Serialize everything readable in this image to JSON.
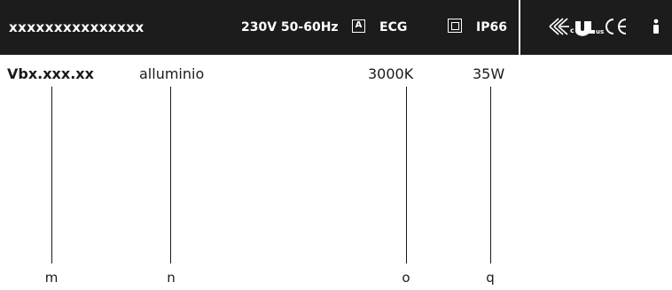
{
  "header": {
    "product_code": "xxxxxxxxxxxxxxx",
    "voltage": "230V 50-60Hz",
    "energy_class_letter": "A",
    "driver": "ECG",
    "ip_rating": "IP66",
    "certification_icons": [
      "enec-icon",
      "ul-listed-icon",
      "ce-mark-icon"
    ],
    "info_icon": "info-icon",
    "background_color": "#1c1c1c",
    "text_color": "#ffffff"
  },
  "fields": [
    {
      "value": "Vbx.xxx.xx",
      "key": "m"
    },
    {
      "value": "alluminio",
      "key": "n"
    },
    {
      "value": "3000K",
      "key": "o"
    },
    {
      "value": "35W",
      "key": "q"
    }
  ]
}
